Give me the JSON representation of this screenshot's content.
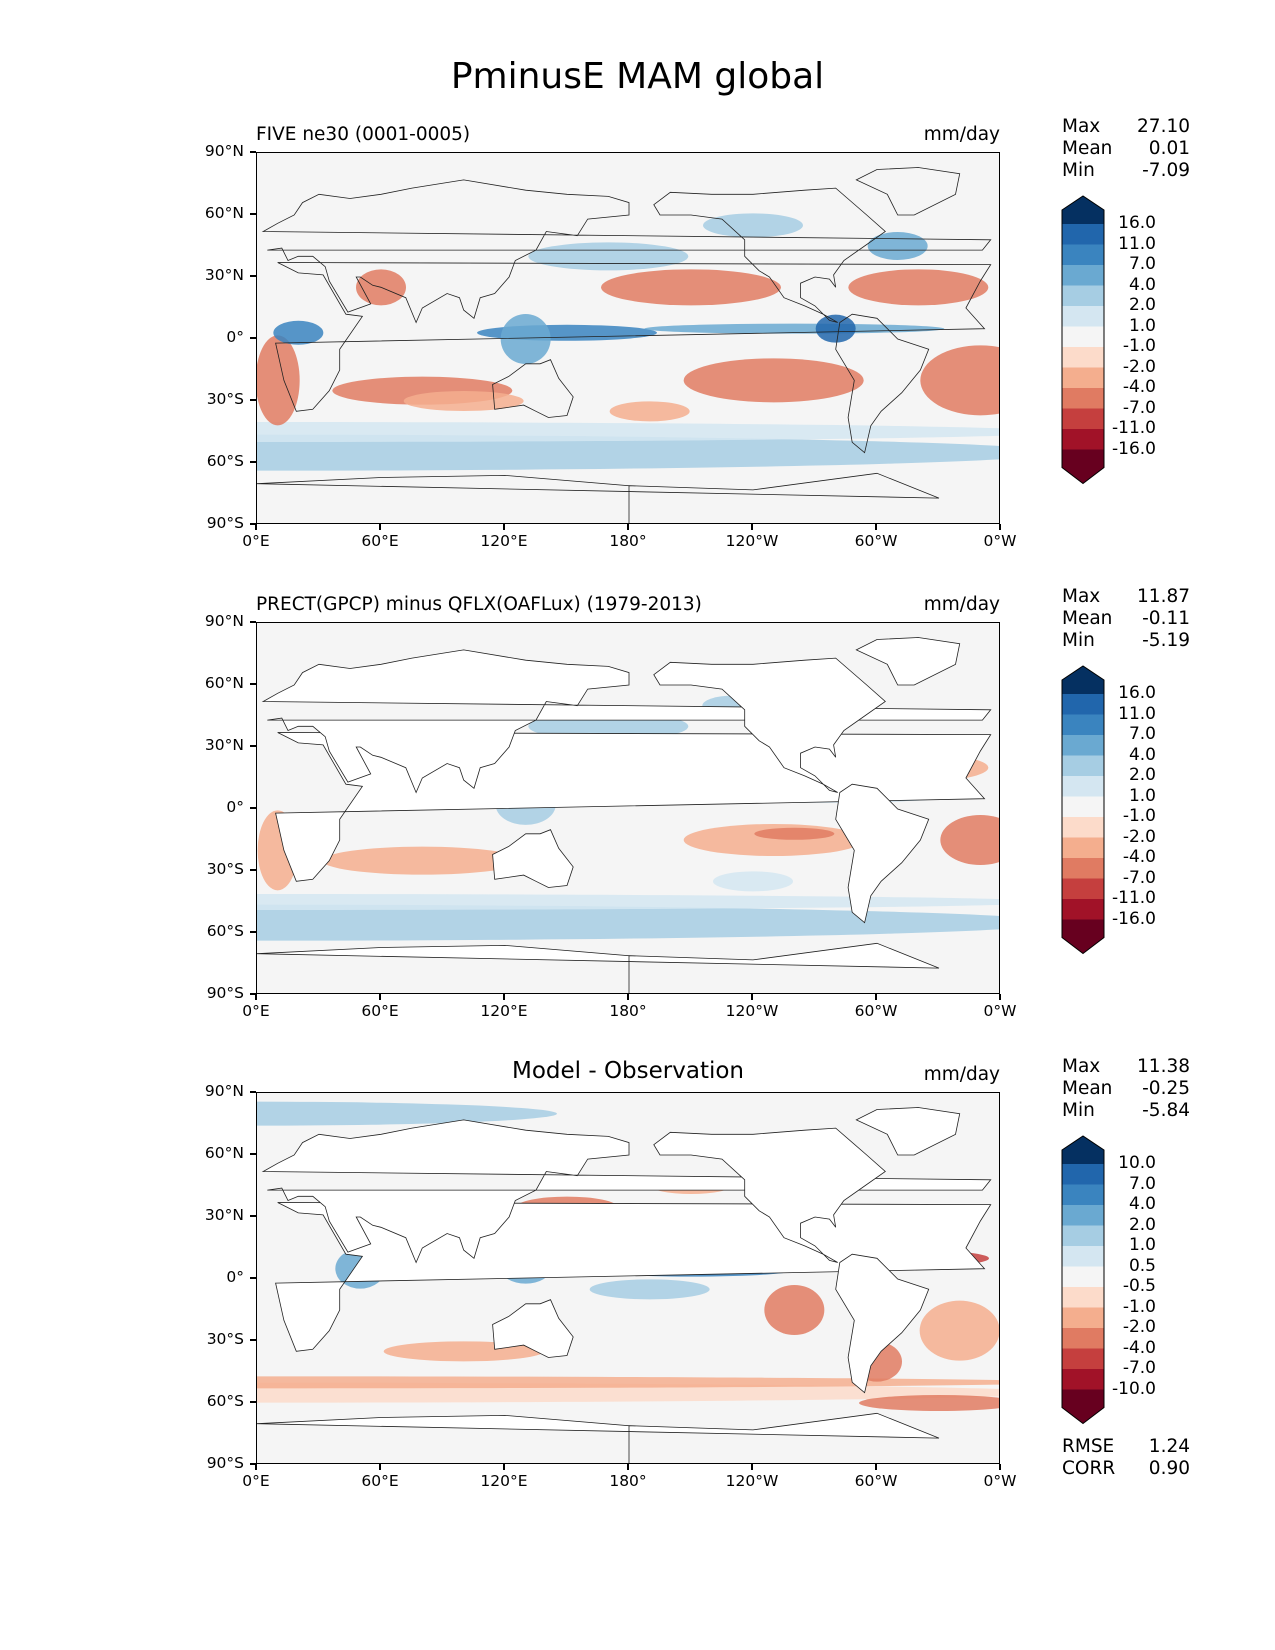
{
  "figure": {
    "title": "PminusE MAM global",
    "x_ticks": [
      "0°E",
      "60°E",
      "120°E",
      "180°",
      "120°W",
      "60°W",
      "0°W"
    ],
    "y_ticks": [
      "90°N",
      "60°N",
      "30°N",
      "0°",
      "30°S",
      "60°S",
      "90°S"
    ]
  },
  "panels": [
    {
      "title": "FIVE ne30 (0001-0005)",
      "units": "mm/day",
      "stats": {
        "max_label": "Max",
        "max": "27.10",
        "mean_label": "Mean",
        "mean": "0.01",
        "min_label": "Min",
        "min": "-7.09"
      },
      "levels": [
        "16.0",
        "11.0",
        "7.0",
        "4.0",
        "2.0",
        "1.0",
        "-1.0",
        "-2.0",
        "-4.0",
        "-7.0",
        "-11.0",
        "-16.0"
      ]
    },
    {
      "title": "PRECT(GPCP) minus QFLX(OAFLux) (1979-2013)",
      "units": "mm/day",
      "stats": {
        "max_label": "Max",
        "max": "11.87",
        "mean_label": "Mean",
        "mean": "-0.11",
        "min_label": "Min",
        "min": "-5.19"
      },
      "levels": [
        "16.0",
        "11.0",
        "7.0",
        "4.0",
        "2.0",
        "1.0",
        "-1.0",
        "-2.0",
        "-4.0",
        "-7.0",
        "-11.0",
        "-16.0"
      ]
    },
    {
      "title": "Model - Observation",
      "units": "mm/day",
      "stats": {
        "max_label": "Max",
        "max": "11.38",
        "mean_label": "Mean",
        "mean": "-0.25",
        "min_label": "Min",
        "min": "-5.84"
      },
      "levels": [
        "10.0",
        "7.0",
        "4.0",
        "2.0",
        "1.0",
        "0.5",
        "-0.5",
        "-1.0",
        "-2.0",
        "-4.0",
        "-7.0",
        "-10.0"
      ],
      "metrics": {
        "rmse_label": "RMSE",
        "rmse": "1.24",
        "corr_label": "CORR",
        "corr": "0.90"
      }
    }
  ],
  "colormap": [
    "#053061",
    "#2166ac",
    "#3a84bf",
    "#6aa9d1",
    "#a6cde3",
    "#d4e6f1",
    "#f5f5f5",
    "#fcdbca",
    "#f4ae8e",
    "#e07b62",
    "#c53f3e",
    "#a11228",
    "#67001f"
  ]
}
